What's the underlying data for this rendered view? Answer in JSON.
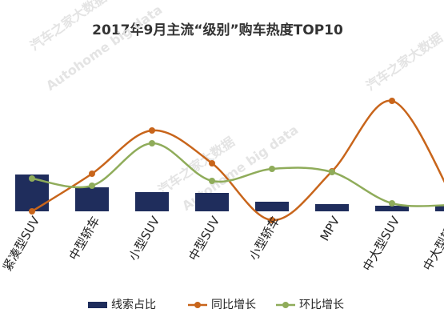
{
  "chart_data": {
    "type": "bar-line",
    "title": "2017年9月主流“级别”购车热度TOP10",
    "watermark": "汽车之家大数据",
    "watermark_sub": "Autohome big data",
    "categories": [
      "紧凑型SUV",
      "中型轿车",
      "小型SUV",
      "中型SUV",
      "小型轿车",
      "MPV",
      "中大型SUV",
      "中大型轿车"
    ],
    "series": [
      {
        "name": "线索占比",
        "kind": "bar",
        "color": "#1f2d5c",
        "values": [
          9.2,
          6.0,
          4.8,
          4.6,
          2.4,
          1.8,
          1.4,
          1.4
        ]
      },
      {
        "name": "同比增长",
        "kind": "line",
        "color": "#c8651b",
        "values": [
          0,
          9.4,
          20.2,
          12,
          -2.2,
          10,
          27.6,
          3.8
        ]
      },
      {
        "name": "环比增长",
        "kind": "line",
        "color": "#8fac5a",
        "values": [
          8.2,
          6.4,
          17,
          7.6,
          10.6,
          9.8,
          2,
          1.6
        ]
      }
    ]
  }
}
